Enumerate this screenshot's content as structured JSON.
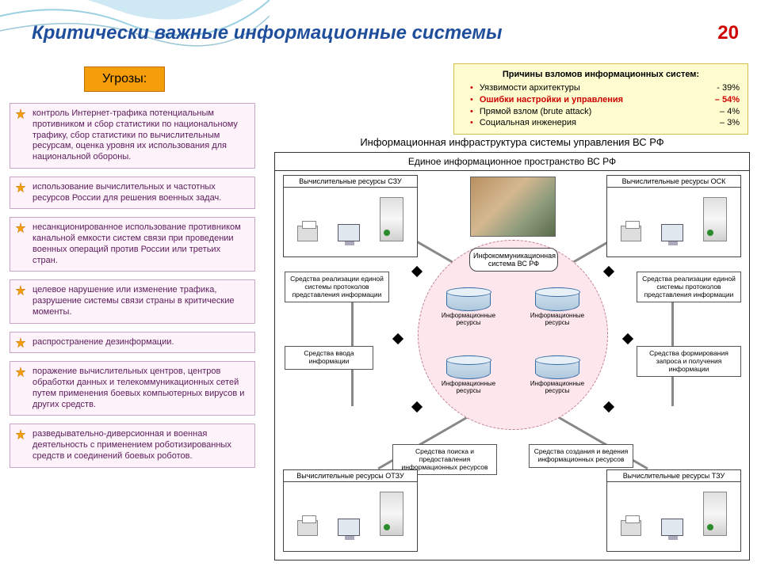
{
  "title": "Критически важные информационные системы",
  "pagenum": "20",
  "threats_header": "Угрозы:",
  "threats": [
    "контроль Интернет-трафика потенциальным противником и сбор статистики по национальному трафику, сбор статистики по вычислительным ресурсам, оценка уровня их использования для национальной обороны.",
    "использование вычислительных и частотных ресурсов России для решения военных задач.",
    "несанкционированное использование противником канальной емкости систем связи при проведении военных операций против России или третьих стран.",
    "целевое нарушение или изменение трафика, разрушение системы связи страны в критические моменты.",
    "распространение дезинформации.",
    "поражение вычислительных центров, центров обработки данных и телекоммуникационных сетей путем применения боевых компьютерных вирусов и других средств.",
    "разведывательно-диверсионная и военная деятельность с применением роботизированных средств и соединений боевых роботов."
  ],
  "causes": {
    "header": "Причины взломов информационных систем:",
    "items": [
      {
        "label": "Уязвимости архитектуры",
        "value": "- 39%",
        "highlight": false
      },
      {
        "label": "Ошибки настройки и управления",
        "value": "– 54%",
        "highlight": true
      },
      {
        "label": "Прямой взлом (brute attack)",
        "value": "– 4%",
        "highlight": false
      },
      {
        "label": "Социальная инженерия",
        "value": "– 3%",
        "highlight": false
      }
    ]
  },
  "diagram": {
    "super_title": "Информационная инфраструктура системы управления ВС РФ",
    "frame_title": "Единое информационное пространство ВС РФ",
    "center_label": "Инфокоммуникационная система ВС РФ",
    "db": [
      "Информационные ресурсы",
      "Информационные ресурсы",
      "Информационные ресурсы",
      "Информационные ресурсы"
    ],
    "corners": {
      "tl": "Вычислительные ресурсы СЗУ",
      "tr": "Вычислительные ресурсы ОСК",
      "bl": "Вычислительные ресурсы ОТЗУ",
      "br": "Вычислительные ресурсы ТЗУ"
    },
    "sboxes": {
      "ltop": "Средства реализации единой системы протоколов представления информации",
      "lmid": "Средства ввода информации",
      "rtop": "Средства реализации единой системы протоколов представления информации",
      "rmid": "Средства формирования запроса и получения информации",
      "bl": "Средства поиска и предоставления информационных ресурсов",
      "br": "Средства создания и ведения информационных ресурсов"
    }
  },
  "colors": {
    "title": "#1f4e9c",
    "pagenum": "#d00000",
    "threat_bg": "#fff3fb",
    "threat_border": "#c9a5c9",
    "orange": "#f59e0b",
    "causes_bg": "#fffdd0",
    "bubble_bg": "#fde6ec",
    "bubble_border": "#c08090"
  }
}
